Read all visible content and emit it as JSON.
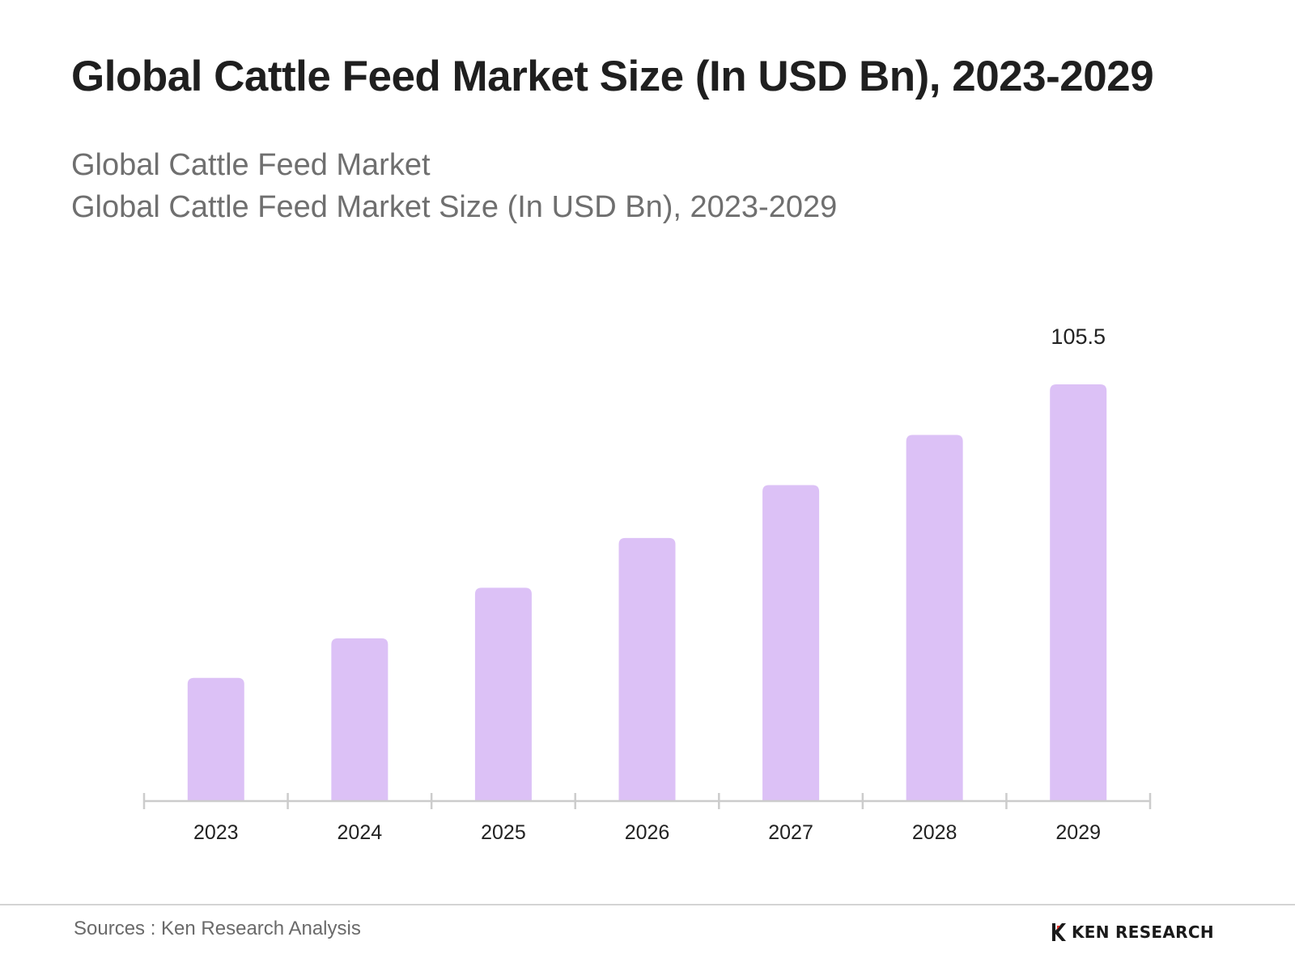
{
  "header": {
    "title": "Global Cattle Feed Market Size (In USD Bn), 2023-2029",
    "subtitle_line1": "Global Cattle Feed Market",
    "subtitle_line2": "Global Cattle Feed Market Size (In USD Bn), 2023-2029"
  },
  "chart_data": {
    "type": "bar",
    "title": "Global Cattle Feed Market Size (In USD Bn), 2023-2029",
    "xlabel": "",
    "ylabel": "",
    "categories": [
      "2023",
      "2024",
      "2025",
      "2026",
      "2027",
      "2028",
      "2029"
    ],
    "values": [
      31.2,
      41.2,
      54.0,
      66.6,
      80.0,
      92.7,
      105.5
    ],
    "value_labels": [
      "",
      "",
      "",
      "",
      "",
      "",
      "105.5"
    ],
    "ylim": [
      0,
      105.5
    ],
    "grid": false,
    "legend": "none",
    "bar_color": "#dcc1f6",
    "axis_color": "#cccccc"
  },
  "footer": {
    "source": "Sources : Ken Research Analysis",
    "brand": "KEN RESEARCH"
  }
}
